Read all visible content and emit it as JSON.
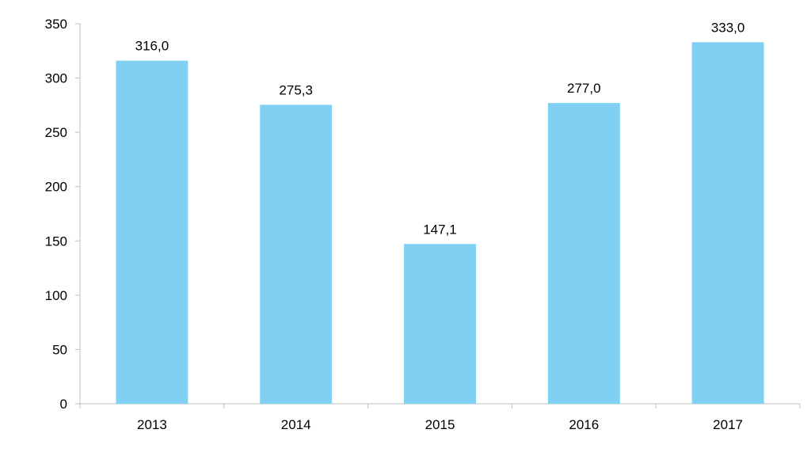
{
  "chart_data": {
    "type": "bar",
    "categories": [
      "2013",
      "2014",
      "2015",
      "2016",
      "2017"
    ],
    "values": [
      316.0,
      275.3,
      147.1,
      277.0,
      333.0
    ],
    "value_labels": [
      "316,0",
      "275,3",
      "147,1",
      "277,0",
      "333,0"
    ],
    "title": "",
    "xlabel": "",
    "ylabel": "",
    "ylim": [
      0,
      350
    ],
    "yticks": [
      0,
      50,
      100,
      150,
      200,
      250,
      300,
      350
    ],
    "grid": false,
    "legend": "none",
    "bar_color": "#7fd0f2",
    "axis_color": "#bfbfbf"
  }
}
